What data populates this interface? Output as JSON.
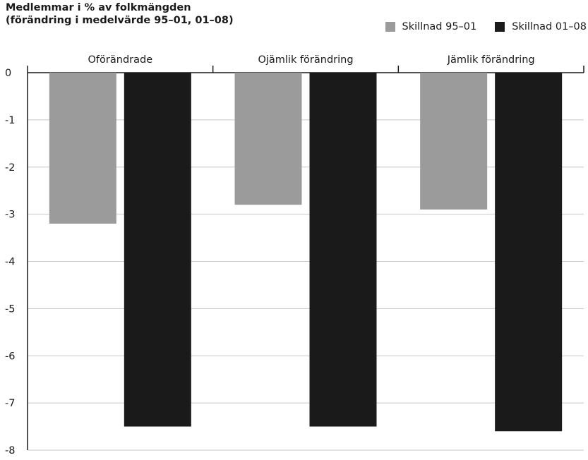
{
  "chart_data": {
    "type": "bar",
    "title_line1": "Medlemmar i % av folkmängden",
    "title_line2": "(förändring i medelvärde 95–01, 01–08)",
    "categories": [
      "Oförändrade",
      "Ojämlik förändring",
      "Jämlik förändring"
    ],
    "series": [
      {
        "name": "Skillnad 95–01",
        "color": "#9b9b9b",
        "values": [
          -3.2,
          -2.8,
          -2.9
        ]
      },
      {
        "name": "Skillnad 01–08",
        "color": "#1a1a1a",
        "values": [
          -7.5,
          -7.5,
          -7.6
        ]
      }
    ],
    "ylim": [
      -8,
      0
    ],
    "yticks": [
      0,
      -1,
      -2,
      -3,
      -4,
      -5,
      -6,
      -7,
      -8
    ],
    "grid": true,
    "category_labels_position": "top",
    "legend_position": "top-right"
  }
}
